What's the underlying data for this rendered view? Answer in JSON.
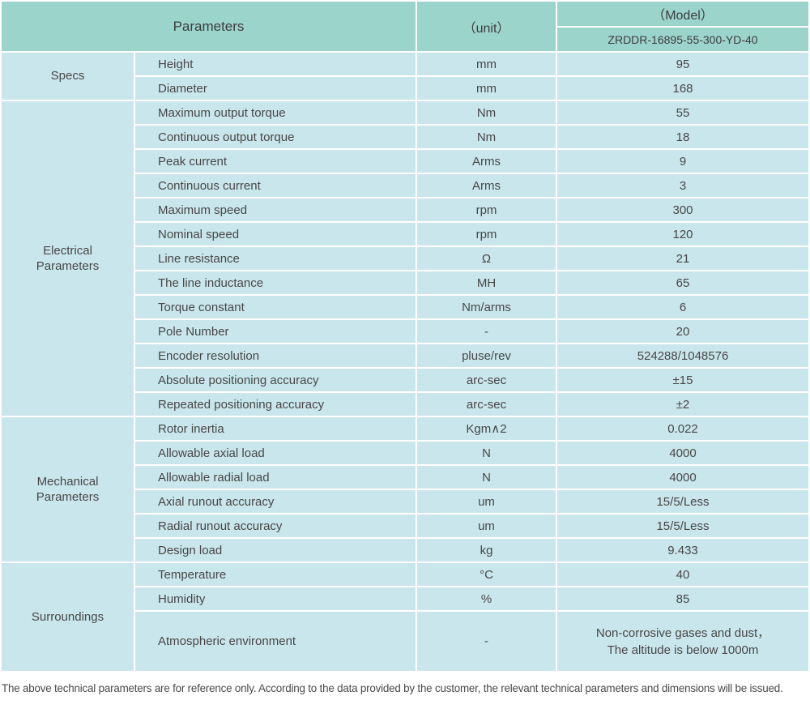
{
  "header": {
    "parameters_label": "Parameters",
    "unit_label": "（unit）",
    "model_label": "（Model）",
    "model_value": "ZRDDR-16895-55-300-YD-40"
  },
  "sections": [
    {
      "name": "Specs",
      "rows": [
        {
          "param": "Height",
          "unit": "mm",
          "value": "95"
        },
        {
          "param": "Diameter",
          "unit": "mm",
          "value": "168"
        }
      ]
    },
    {
      "name": "Electrical\nParameters",
      "rows": [
        {
          "param": "Maximum output torque",
          "unit": "Nm",
          "value": "55"
        },
        {
          "param": "Continuous output torque",
          "unit": "Nm",
          "value": "18"
        },
        {
          "param": "Peak current",
          "unit": "Arms",
          "value": "9"
        },
        {
          "param": "Continuous current",
          "unit": "Arms",
          "value": "3"
        },
        {
          "param": "Maximum speed",
          "unit": "rpm",
          "value": "300"
        },
        {
          "param": "Nominal speed",
          "unit": "rpm",
          "value": "120"
        },
        {
          "param": "Line resistance",
          "unit": "Ω",
          "value": "21"
        },
        {
          "param": "The line inductance",
          "unit": "MH",
          "value": "65"
        },
        {
          "param": "Torque constant",
          "unit": "Nm/arms",
          "value": "6"
        },
        {
          "param": "Pole Number",
          "unit": "-",
          "value": "20"
        },
        {
          "param": "Encoder resolution",
          "unit": "pluse/rev",
          "value": "524288/1048576"
        },
        {
          "param": "Absolute positioning accuracy",
          "unit": "arc-sec",
          "value": "±15"
        },
        {
          "param": "Repeated positioning accuracy",
          "unit": "arc-sec",
          "value": "±2"
        }
      ]
    },
    {
      "name": "Mechanical\nParameters",
      "rows": [
        {
          "param": "Rotor inertia",
          "unit": "Kgm∧2",
          "value": "0.022"
        },
        {
          "param": "Allowable axial load",
          "unit": "N",
          "value": "4000"
        },
        {
          "param": "Allowable radial load",
          "unit": "N",
          "value": "4000"
        },
        {
          "param": "Axial runout accuracy",
          "unit": "um",
          "value": "15/5/Less"
        },
        {
          "param": "Radial runout accuracy",
          "unit": "um",
          "value": "15/5/Less"
        },
        {
          "param": "Design load",
          "unit": "kg",
          "value": "9.433"
        }
      ]
    },
    {
      "name": "Surroundings",
      "rows": [
        {
          "param": "Temperature",
          "unit": "°C",
          "value": "40"
        },
        {
          "param": "Humidity",
          "unit": "%",
          "value": "85"
        },
        {
          "param": "Atmospheric environment",
          "unit": "-",
          "value": "Non-corrosive gases and dust，\nThe altitude is below 1000m"
        }
      ]
    }
  ],
  "footer": {
    "note": "The above technical parameters are for reference only. According to the data provided by the customer, the relevant technical parameters and dimensions will be issued."
  },
  "colors": {
    "header_bg": "#9bd4cb",
    "cell_bg": "#c9e6ec",
    "grid": "#ffffff",
    "text": "#474747"
  }
}
